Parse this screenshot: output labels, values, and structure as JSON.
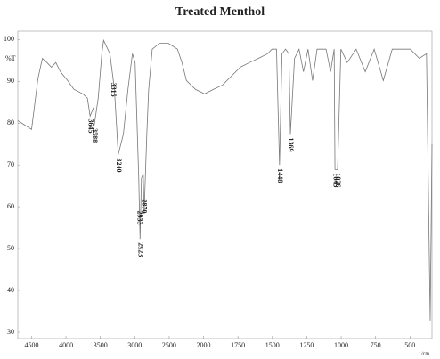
{
  "chart_data": {
    "type": "line",
    "title": "Treated Menthol",
    "y_label": "%T",
    "x_label": "1/cm",
    "color": "#777777",
    "xlim": [
      4700,
      340
    ],
    "ylim": [
      28.5,
      102
    ],
    "xticks": [
      4500,
      4000,
      3500,
      3000,
      2500,
      2000,
      1750,
      1500,
      1250,
      1000,
      750,
      500
    ],
    "yticks": [
      100,
      90,
      80,
      70,
      60,
      50,
      40,
      30
    ],
    "x": [
      4700,
      4605,
      4500,
      4408,
      4343,
      4277,
      4212,
      4147,
      4081,
      3976,
      3885,
      3754,
      3689,
      3649,
      3597,
      3588,
      3531,
      3479,
      3453,
      3361,
      3296,
      3240,
      3165,
      3099,
      3034,
      2995,
      2942,
      2923,
      2903,
      2877,
      2864,
      2825,
      2798,
      2746,
      2641,
      2510,
      2380,
      2314,
      2249,
      2118,
      1993,
      1928,
      1863,
      1797,
      1732,
      1666,
      1601,
      1535,
      1503,
      1470,
      1448,
      1430,
      1404,
      1380,
      1369,
      1339,
      1306,
      1274,
      1241,
      1208,
      1175,
      1110,
      1077,
      1051,
      1045,
      1026,
      1002,
      956,
      891,
      825,
      760,
      694,
      629,
      498,
      432,
      380,
      353,
      340
    ],
    "values": [
      80.6,
      79.6,
      78.5,
      90.6,
      95.5,
      94.5,
      93.4,
      94.5,
      92.3,
      90.2,
      88.1,
      87.0,
      86.0,
      81.7,
      83.8,
      79.6,
      86.0,
      96.6,
      99.8,
      96.6,
      88.1,
      72.5,
      77.4,
      88.1,
      96.6,
      94.5,
      66.8,
      52.3,
      66.8,
      67.9,
      58.3,
      77.4,
      88.1,
      97.7,
      99.1,
      99.1,
      97.7,
      94.5,
      90.2,
      88.1,
      87.0,
      88.1,
      89.1,
      91.3,
      93.4,
      94.5,
      95.5,
      96.6,
      97.7,
      97.7,
      70.0,
      96.6,
      97.7,
      96.6,
      77.4,
      95.5,
      97.7,
      92.3,
      97.7,
      90.2,
      97.7,
      97.7,
      92.3,
      97.7,
      68.9,
      68.9,
      97.7,
      94.5,
      97.7,
      92.3,
      97.7,
      90.2,
      97.7,
      97.7,
      95.5,
      96.6,
      32.8,
      75.0
    ],
    "peaks": [
      3645,
      3588,
      3315,
      3240,
      2933,
      2870,
      2923,
      1448,
      1369,
      1045,
      1026
    ]
  }
}
